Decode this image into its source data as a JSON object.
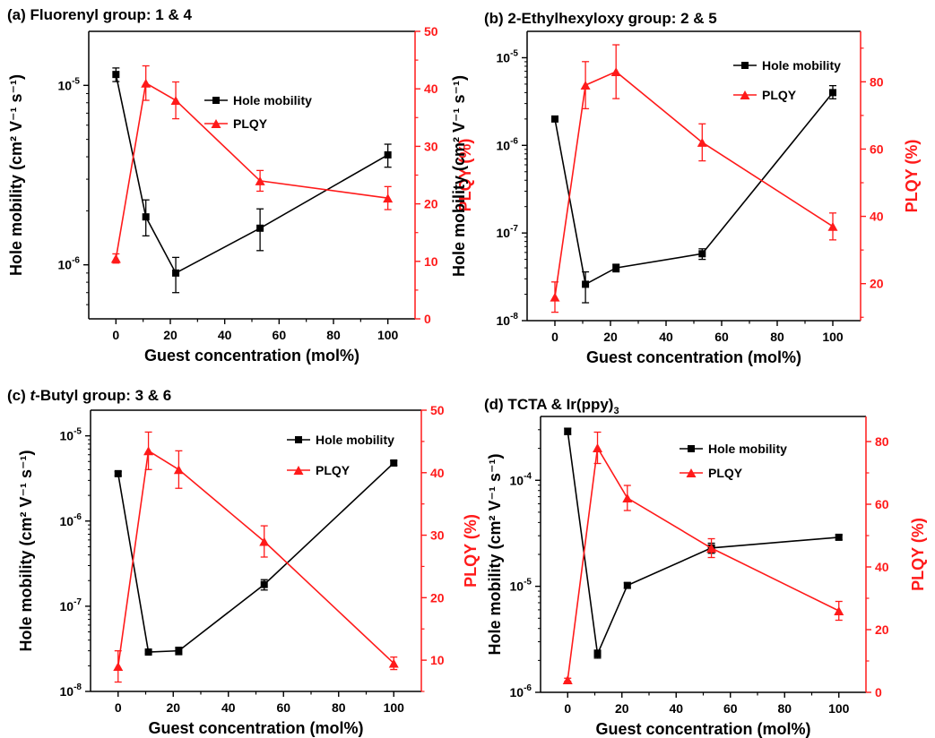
{
  "colors": {
    "hole": "#000000",
    "plqy": "#ff1a1a"
  },
  "chart_data": [
    {
      "id": "a",
      "type": "line",
      "title": "(a) Fluorenyl group: 1 & 4",
      "xlabel": "Guest concentration (mol%)",
      "ylabel_left": "Hole mobility (cm² V⁻¹ s⁻¹)",
      "ylabel_right": "PLQY (%)",
      "x_ticks": [
        0,
        20,
        40,
        60,
        80,
        100
      ],
      "xlim": [
        -10,
        110
      ],
      "y_left": {
        "scale": "log",
        "lim": [
          5e-07,
          2e-05
        ],
        "ticks": [
          {
            "value": 1e-06,
            "base": "10",
            "exp": "-6"
          },
          {
            "value": 1e-05,
            "base": "10",
            "exp": "-5"
          }
        ]
      },
      "y_right": {
        "scale": "linear",
        "lim": [
          0,
          50
        ],
        "ticks": [
          0,
          10,
          20,
          30,
          40,
          50
        ]
      },
      "legend": {
        "position": "upper-middle",
        "items": [
          "Hole mobility",
          "PLQY"
        ]
      },
      "series": [
        {
          "name": "Hole mobility",
          "axis": "left",
          "marker": "square",
          "x": [
            0,
            11,
            22,
            53,
            100
          ],
          "y": [
            1.15e-05,
            1.85e-06,
            9e-07,
            1.6e-06,
            4.1e-06
          ],
          "err_low": [
            1.05e-05,
            1.45e-06,
            7e-07,
            1.2e-06,
            3.5e-06
          ],
          "err_high": [
            1.25e-05,
            2.3e-06,
            1.1e-06,
            2.05e-06,
            4.7e-06
          ]
        },
        {
          "name": "PLQY",
          "axis": "right",
          "marker": "triangle",
          "x": [
            0,
            11,
            22,
            53,
            100
          ],
          "y": [
            10.5,
            41,
            38,
            24,
            21
          ],
          "err": [
            0.8,
            3,
            3.2,
            1.8,
            2
          ]
        }
      ]
    },
    {
      "id": "b",
      "type": "line",
      "title": "(b) 2-Ethylhexyloxy group: 2 & 5",
      "xlabel": "Guest concentration (mol%)",
      "ylabel_left": "Hole mobility (cm² V⁻¹ s⁻¹)",
      "ylabel_right": "PLQY (%)",
      "x_ticks": [
        0,
        20,
        40,
        60,
        80,
        100
      ],
      "xlim": [
        -10,
        110
      ],
      "y_left": {
        "scale": "log",
        "lim": [
          1e-08,
          2e-05
        ],
        "ticks": [
          {
            "value": 1e-08,
            "base": "10",
            "exp": "-8"
          },
          {
            "value": 1e-07,
            "base": "10",
            "exp": "-7"
          },
          {
            "value": 1e-06,
            "base": "10",
            "exp": "-6"
          },
          {
            "value": 1e-05,
            "base": "10",
            "exp": "-5"
          }
        ]
      },
      "y_right": {
        "scale": "linear",
        "lim": [
          9,
          95
        ],
        "ticks": [
          20,
          40,
          60,
          80
        ]
      },
      "legend": {
        "position": "top-right",
        "items": [
          "Hole mobility",
          "PLQY"
        ]
      },
      "series": [
        {
          "name": "Hole mobility",
          "axis": "left",
          "marker": "square",
          "x": [
            0,
            11,
            22,
            53,
            100
          ],
          "y": [
            2e-06,
            2.6e-08,
            4e-08,
            5.8e-08,
            4e-06
          ],
          "err_low": [
            1.9e-06,
            1.6e-08,
            3.6e-08,
            5e-08,
            3.4e-06
          ],
          "err_high": [
            2.1e-06,
            3.6e-08,
            4.4e-08,
            6.6e-08,
            4.8e-06
          ]
        },
        {
          "name": "PLQY",
          "axis": "right",
          "marker": "triangle",
          "x": [
            0,
            11,
            22,
            53,
            100
          ],
          "y": [
            16,
            79,
            83,
            62,
            37
          ],
          "err": [
            4.5,
            7,
            8,
            5.5,
            4
          ]
        }
      ]
    },
    {
      "id": "c",
      "type": "line",
      "title_pre": "(c) ",
      "title_italic": "t",
      "title_post": "-Butyl group: 3 & 6",
      "xlabel": "Guest concentration (mol%)",
      "ylabel_left": "Hole mobility (cm² V⁻¹ s⁻¹)",
      "ylabel_right": "PLQY (%)",
      "x_ticks": [
        0,
        20,
        40,
        60,
        80,
        100
      ],
      "xlim": [
        -10,
        110
      ],
      "y_left": {
        "scale": "log",
        "lim": [
          1e-08,
          2e-05
        ],
        "ticks": [
          {
            "value": 1e-08,
            "base": "10",
            "exp": "-8"
          },
          {
            "value": 1e-07,
            "base": "10",
            "exp": "-7"
          },
          {
            "value": 1e-06,
            "base": "10",
            "exp": "-6"
          },
          {
            "value": 1e-05,
            "base": "10",
            "exp": "-5"
          }
        ]
      },
      "y_right": {
        "scale": "linear",
        "lim": [
          5,
          50
        ],
        "ticks": [
          10,
          20,
          30,
          40,
          50
        ]
      },
      "legend": {
        "position": "top-right",
        "items": [
          "Hole mobility",
          "PLQY"
        ]
      },
      "series": [
        {
          "name": "Hole mobility",
          "axis": "left",
          "marker": "square",
          "x": [
            0,
            11,
            22,
            53,
            100
          ],
          "y": [
            3.6e-06,
            2.9e-08,
            3e-08,
            1.8e-07,
            4.8e-06
          ],
          "err_low": [
            3.4e-06,
            2.8e-08,
            2.7e-08,
            1.55e-07,
            4.5e-06
          ],
          "err_high": [
            3.8e-06,
            3e-08,
            3.3e-08,
            2.05e-07,
            5.1e-06
          ]
        },
        {
          "name": "PLQY",
          "axis": "right",
          "marker": "triangle",
          "x": [
            0,
            11,
            22,
            53,
            100
          ],
          "y": [
            9,
            43.5,
            40.5,
            29,
            9.5
          ],
          "err": [
            2.5,
            3,
            3,
            2.5,
            1
          ]
        }
      ]
    },
    {
      "id": "d",
      "type": "line",
      "title_pre": "(d) TCTA & Ir(ppy)",
      "title_sub": "3",
      "xlabel": "Guest concentration (mol%)",
      "ylabel_left": "Hole mobility (cm² V⁻¹ s⁻¹)",
      "ylabel_right": "PLQY (%)",
      "x_ticks": [
        0,
        20,
        40,
        60,
        80,
        100
      ],
      "xlim": [
        -10,
        110
      ],
      "y_left": {
        "scale": "log",
        "lim": [
          1e-06,
          0.0004
        ],
        "ticks": [
          {
            "value": 1e-06,
            "base": "10",
            "exp": "-6"
          },
          {
            "value": 1e-05,
            "base": "10",
            "exp": "-5"
          },
          {
            "value": 0.0001,
            "base": "10",
            "exp": "-4"
          }
        ]
      },
      "y_right": {
        "scale": "linear",
        "lim": [
          0,
          88
        ],
        "ticks": [
          0,
          20,
          40,
          60,
          80
        ]
      },
      "legend": {
        "position": "upper-middle",
        "items": [
          "Hole mobility",
          "PLQY"
        ]
      },
      "series": [
        {
          "name": "Hole mobility",
          "axis": "left",
          "marker": "square",
          "x": [
            0,
            11,
            22,
            53,
            100
          ],
          "y": [
            0.00029,
            2.3e-06,
            1.02e-05,
            2.3e-05,
            2.9e-05
          ],
          "err_low": [
            0.00027,
            2.1e-06,
            9.6e-06,
            2.05e-05,
            2.75e-05
          ],
          "err_high": [
            0.00031,
            2.5e-06,
            1.08e-05,
            2.55e-05,
            3.05e-05
          ]
        },
        {
          "name": "PLQY",
          "axis": "right",
          "marker": "triangle",
          "x": [
            0,
            11,
            22,
            53,
            100
          ],
          "y": [
            4,
            78,
            62,
            46,
            26
          ],
          "err": [
            0.5,
            5,
            4,
            3,
            3
          ]
        }
      ]
    }
  ]
}
